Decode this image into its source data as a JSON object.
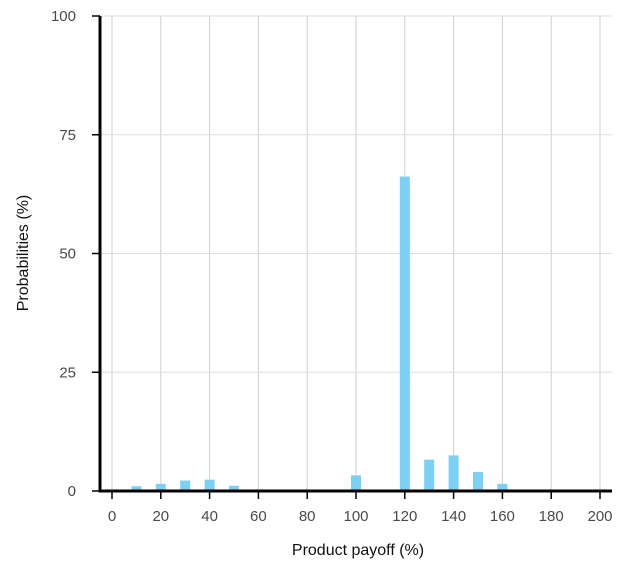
{
  "chart_data": {
    "type": "bar",
    "title": "",
    "xlabel": "Product payoff (%)",
    "ylabel": "Probabilities (%)",
    "xlim": [
      -5,
      205
    ],
    "ylim": [
      0,
      100
    ],
    "x_ticks": [
      0,
      20,
      40,
      60,
      80,
      100,
      120,
      140,
      160,
      180,
      200
    ],
    "y_ticks": [
      0,
      25,
      50,
      75,
      100
    ],
    "grid": "vertical",
    "legend": "none",
    "bar_color": "#7dd0f1",
    "x": [
      10,
      20,
      30,
      40,
      50,
      100,
      120,
      130,
      140,
      150,
      160
    ],
    "values": [
      1.0,
      1.5,
      2.2,
      2.4,
      1.1,
      3.3,
      66.2,
      6.6,
      7.5,
      4.0,
      1.5
    ]
  }
}
